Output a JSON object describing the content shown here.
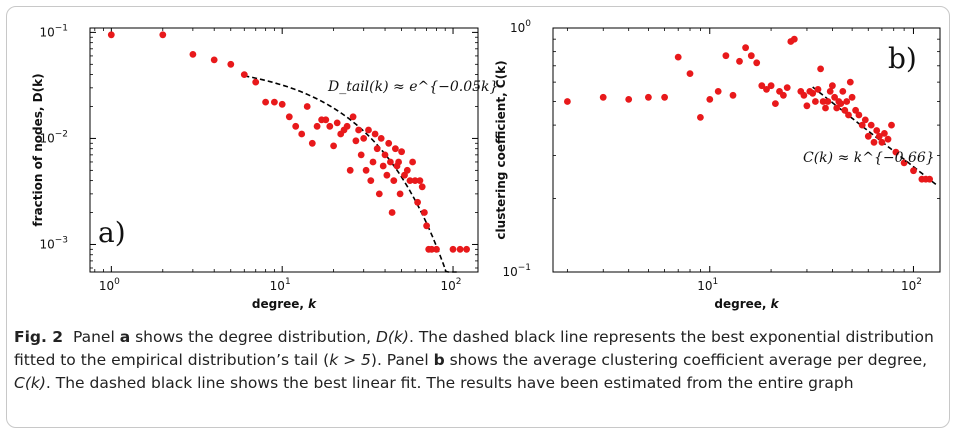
{
  "chart_data": [
    {
      "type": "scatter",
      "panel_label": "a)",
      "xlabel": "degree, k",
      "ylabel": "fraction of nodes, D(k)",
      "x_scale": "log",
      "y_scale": "log",
      "xlim": [
        0.75,
        140
      ],
      "ylim": [
        0.00055,
        0.11
      ],
      "x_ticks": [
        {
          "v": 1,
          "label": "10",
          "exp": "0"
        },
        {
          "v": 10,
          "label": "10",
          "exp": "1"
        },
        {
          "v": 100,
          "label": "10",
          "exp": "2"
        }
      ],
      "y_ticks": [
        {
          "v": 0.001,
          "label": "10",
          "exp": "−3"
        },
        {
          "v": 0.01,
          "label": "10",
          "exp": "−2"
        },
        {
          "v": 0.1,
          "label": "10",
          "exp": "−1"
        }
      ],
      "fit_label": "D_tail(k) ≈ e^{−0.05k}",
      "fit": {
        "type": "exponential",
        "x_start": 6,
        "x_end": 105,
        "k0": 7,
        "y0": 0.037,
        "rate": 0.05
      },
      "series": [
        {
          "color": "#e8191b",
          "points": [
            [
              1,
              0.095
            ],
            [
              2,
              0.095
            ],
            [
              3,
              0.062
            ],
            [
              4,
              0.055
            ],
            [
              5,
              0.05
            ],
            [
              6,
              0.04
            ],
            [
              7,
              0.034
            ],
            [
              8,
              0.022
            ],
            [
              9,
              0.022
            ],
            [
              10,
              0.021
            ],
            [
              11,
              0.016
            ],
            [
              12,
              0.013
            ],
            [
              13,
              0.011
            ],
            [
              14,
              0.02
            ],
            [
              15,
              0.009
            ],
            [
              16,
              0.013
            ],
            [
              17,
              0.015
            ],
            [
              18,
              0.015
            ],
            [
              19,
              0.013
            ],
            [
              20,
              0.0085
            ],
            [
              21,
              0.014
            ],
            [
              22,
              0.011
            ],
            [
              23,
              0.012
            ],
            [
              24,
              0.013
            ],
            [
              25,
              0.005
            ],
            [
              26,
              0.016
            ],
            [
              27,
              0.0095
            ],
            [
              28,
              0.012
            ],
            [
              29,
              0.007
            ],
            [
              30,
              0.01
            ],
            [
              31,
              0.005
            ],
            [
              32,
              0.012
            ],
            [
              33,
              0.004
            ],
            [
              34,
              0.006
            ],
            [
              35,
              0.011
            ],
            [
              36,
              0.008
            ],
            [
              37,
              0.003
            ],
            [
              38,
              0.01
            ],
            [
              39,
              0.0055
            ],
            [
              40,
              0.007
            ],
            [
              41,
              0.0045
            ],
            [
              42,
              0.009
            ],
            [
              43,
              0.006
            ],
            [
              44,
              0.002
            ],
            [
              45,
              0.004
            ],
            [
              46,
              0.008
            ],
            [
              47,
              0.0055
            ],
            [
              48,
              0.006
            ],
            [
              49,
              0.003
            ],
            [
              50,
              0.0075
            ],
            [
              52,
              0.0045
            ],
            [
              54,
              0.005
            ],
            [
              56,
              0.004
            ],
            [
              58,
              0.006
            ],
            [
              60,
              0.004
            ],
            [
              62,
              0.0025
            ],
            [
              64,
              0.004
            ],
            [
              66,
              0.0035
            ],
            [
              68,
              0.002
            ],
            [
              70,
              0.0015
            ],
            [
              72,
              0.0009
            ],
            [
              75,
              0.0009
            ],
            [
              80,
              0.0009
            ],
            [
              100,
              0.0009
            ],
            [
              110,
              0.0009
            ],
            [
              120,
              0.0009
            ]
          ]
        }
      ]
    },
    {
      "type": "scatter",
      "panel_label": "b)",
      "xlabel": "degree, k",
      "ylabel": "clustering coefficient, C(k)",
      "x_scale": "log",
      "y_scale": "log",
      "xlim": [
        1.7,
        135
      ],
      "ylim": [
        0.1,
        1.0
      ],
      "x_ticks": [
        {
          "v": 10,
          "label": "10",
          "exp": "1"
        },
        {
          "v": 100,
          "label": "10",
          "exp": "2"
        }
      ],
      "y_ticks": [
        {
          "v": 0.1,
          "label": "10",
          "exp": "−1"
        },
        {
          "v": 1,
          "label": "10",
          "exp": "0"
        }
      ],
      "fit_label": "C(k) ≈ k^{−0.66}",
      "fit": {
        "type": "power",
        "x_start": 32,
        "x_end": 130,
        "k0": 35,
        "y0": 0.54,
        "exponent": -0.66
      },
      "series": [
        {
          "color": "#e8191b",
          "points": [
            [
              2,
              0.5
            ],
            [
              3,
              0.52
            ],
            [
              4,
              0.51
            ],
            [
              5,
              0.52
            ],
            [
              6,
              0.52
            ],
            [
              7,
              0.76
            ],
            [
              8,
              0.65
            ],
            [
              9,
              0.43
            ],
            [
              10,
              0.51
            ],
            [
              11,
              0.55
            ],
            [
              12,
              0.77
            ],
            [
              13,
              0.53
            ],
            [
              14,
              0.73
            ],
            [
              15,
              0.83
            ],
            [
              16,
              0.77
            ],
            [
              17,
              0.72
            ],
            [
              18,
              0.58
            ],
            [
              19,
              0.56
            ],
            [
              20,
              0.58
            ],
            [
              21,
              0.49
            ],
            [
              22,
              0.55
            ],
            [
              23,
              0.53
            ],
            [
              24,
              0.57
            ],
            [
              25,
              0.88
            ],
            [
              26,
              0.9
            ],
            [
              28,
              0.55
            ],
            [
              29,
              0.53
            ],
            [
              30,
              0.48
            ],
            [
              31,
              0.55
            ],
            [
              32,
              0.54
            ],
            [
              33,
              0.5
            ],
            [
              34,
              0.56
            ],
            [
              35,
              0.68
            ],
            [
              36,
              0.5
            ],
            [
              37,
              0.47
            ],
            [
              38,
              0.5
            ],
            [
              39,
              0.55
            ],
            [
              40,
              0.58
            ],
            [
              41,
              0.52
            ],
            [
              42,
              0.47
            ],
            [
              43,
              0.5
            ],
            [
              44,
              0.49
            ],
            [
              45,
              0.55
            ],
            [
              46,
              0.46
            ],
            [
              47,
              0.5
            ],
            [
              48,
              0.44
            ],
            [
              49,
              0.6
            ],
            [
              50,
              0.52
            ],
            [
              52,
              0.46
            ],
            [
              54,
              0.44
            ],
            [
              56,
              0.4
            ],
            [
              58,
              0.42
            ],
            [
              60,
              0.36
            ],
            [
              62,
              0.4
            ],
            [
              64,
              0.34
            ],
            [
              66,
              0.38
            ],
            [
              68,
              0.36
            ],
            [
              70,
              0.34
            ],
            [
              72,
              0.37
            ],
            [
              75,
              0.35
            ],
            [
              78,
              0.4
            ],
            [
              82,
              0.31
            ],
            [
              90,
              0.28
            ],
            [
              100,
              0.26
            ],
            [
              110,
              0.24
            ],
            [
              115,
              0.24
            ],
            [
              120,
              0.24
            ]
          ]
        }
      ]
    }
  ],
  "caption": {
    "fig_label": "Fig. 2",
    "s1": "Panel ",
    "panel_a": "a",
    "s2": " shows the degree distribution, ",
    "dk": "D(k)",
    "s3": ". The dashed black line represents the best exponential distribution fitted to the empirical distribution’s tail (",
    "cond": "k > 5",
    "s4": "). Panel ",
    "panel_b": "b",
    "s5": " shows the average clustering coefficient average per degree, ",
    "ck": "C(k)",
    "s6": ". The dashed black line shows the best linear fit. The results have been estimated from the entire graph"
  }
}
